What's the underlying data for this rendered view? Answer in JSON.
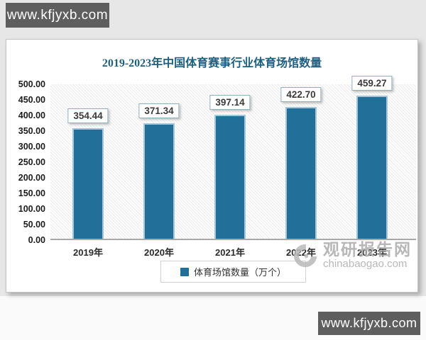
{
  "site_badges": {
    "top": "www.kfjyxb.com",
    "bottom": "www.kfjyxb.com"
  },
  "chart_data": {
    "type": "bar",
    "title": "2019-2023年中国体育赛事行业体育场馆数量",
    "categories": [
      "2019年",
      "2020年",
      "2021年",
      "2022年",
      "2023年"
    ],
    "values": [
      354.44,
      371.34,
      397.14,
      422.7,
      459.27
    ],
    "value_labels": [
      "354.44",
      "371.34",
      "397.14",
      "422.70",
      "459.27"
    ],
    "series_name": "体育场馆数量（万个）",
    "legend": [
      "体育场馆数量（万个）"
    ],
    "legend_position": "bottom",
    "xlabel": "",
    "ylabel": "",
    "ylim": [
      0,
      500
    ],
    "ytick_interval": 50,
    "yticks": [
      "500.00",
      "450.00",
      "400.00",
      "350.00",
      "300.00",
      "250.00",
      "200.00",
      "150.00",
      "100.00",
      "50.00",
      "0.00"
    ],
    "grid": false,
    "bar_color": "#226f99",
    "bar_border_color": "#a3c8db"
  },
  "brand_watermark": {
    "logo": "swirl-g-icon",
    "name": "观研报告网",
    "domain": "chinabaogao.com"
  },
  "colors": {
    "title_text": "#1f6080",
    "badge_background": "#5e5e5e",
    "badge_text": "#ffffff",
    "watermark_gray": "#ababab",
    "axis_line": "#a8a8a8"
  }
}
